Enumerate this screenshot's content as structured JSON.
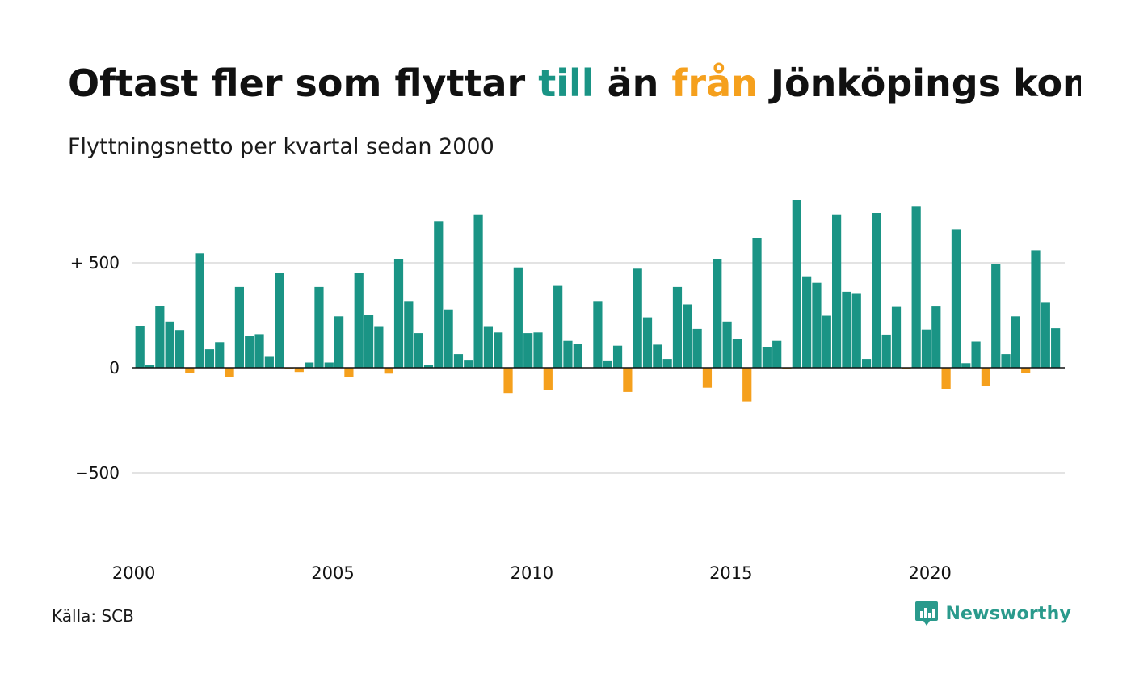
{
  "title": {
    "part1": "Oftast fler som flyttar ",
    "highlight_in": "till",
    "part2": " än ",
    "highlight_out": "från",
    "part3": " Jönköpings kommun"
  },
  "subtitle": "Flyttningsnetto per kvartal sedan 2000",
  "source": "Källa: SCB",
  "brand": "Newsworthy",
  "colors": {
    "positive": "#1a9485",
    "negative": "#f5a01d",
    "title_in": "#1a9485",
    "title_out": "#f5a01d",
    "grid": "#e3e3e3",
    "zero_line": "#111111",
    "brand": "#2a9a8c"
  },
  "chart_data": {
    "type": "bar",
    "x_start": "2000 Q1",
    "frequency": "quarterly",
    "ylim": [
      -950,
      830
    ],
    "y_ticks": [
      {
        "value": 500,
        "label": "+ 500"
      },
      {
        "value": 0,
        "label": "0"
      },
      {
        "value": -500,
        "label": "−500"
      }
    ],
    "x_ticks": [
      "2000",
      "2005",
      "2010",
      "2015",
      "2020"
    ],
    "grid": true,
    "values": [
      200,
      15,
      295,
      220,
      180,
      -25,
      545,
      88,
      122,
      -45,
      385,
      150,
      160,
      52,
      450,
      -5,
      -20,
      25,
      385,
      25,
      245,
      -45,
      450,
      250,
      198,
      -28,
      518,
      318,
      165,
      15,
      695,
      278,
      65,
      38,
      728,
      198,
      168,
      -120,
      478,
      165,
      168,
      -105,
      390,
      128,
      115,
      0,
      318,
      35,
      105,
      -115,
      472,
      240,
      110,
      42,
      385,
      302,
      185,
      -95,
      518,
      220,
      138,
      -160,
      618,
      100,
      128,
      -5,
      800,
      432,
      405,
      248,
      728,
      362,
      352,
      42,
      738,
      158,
      290,
      -5,
      768,
      182,
      292,
      -100,
      660,
      22,
      125,
      -88,
      495,
      65,
      245,
      -25,
      560,
      310,
      188
    ]
  }
}
